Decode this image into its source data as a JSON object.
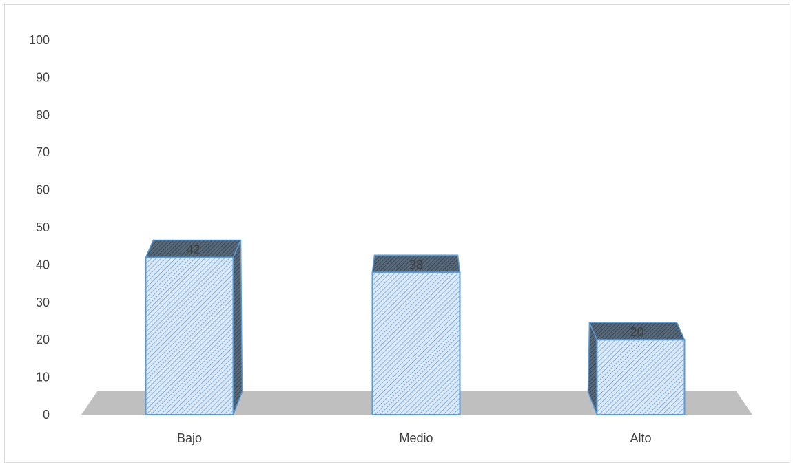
{
  "chart_data": {
    "type": "bar",
    "categories": [
      "Bajo",
      "Medio",
      "Alto"
    ],
    "values": [
      42,
      38,
      20
    ],
    "ylim": [
      0,
      100
    ],
    "yticks": [
      0,
      10,
      20,
      30,
      40,
      50,
      60,
      70,
      80,
      90,
      100
    ],
    "title": "",
    "xlabel": "",
    "ylabel": "",
    "grid": false,
    "legend": "none",
    "colors": {
      "bar_fill": "#dbe9f7",
      "bar_hatch": "#5b9bd5",
      "bar_stroke": "#5b9bd5",
      "bar_dark": "#4a5a6a",
      "floor": "#bfbfbf"
    }
  }
}
